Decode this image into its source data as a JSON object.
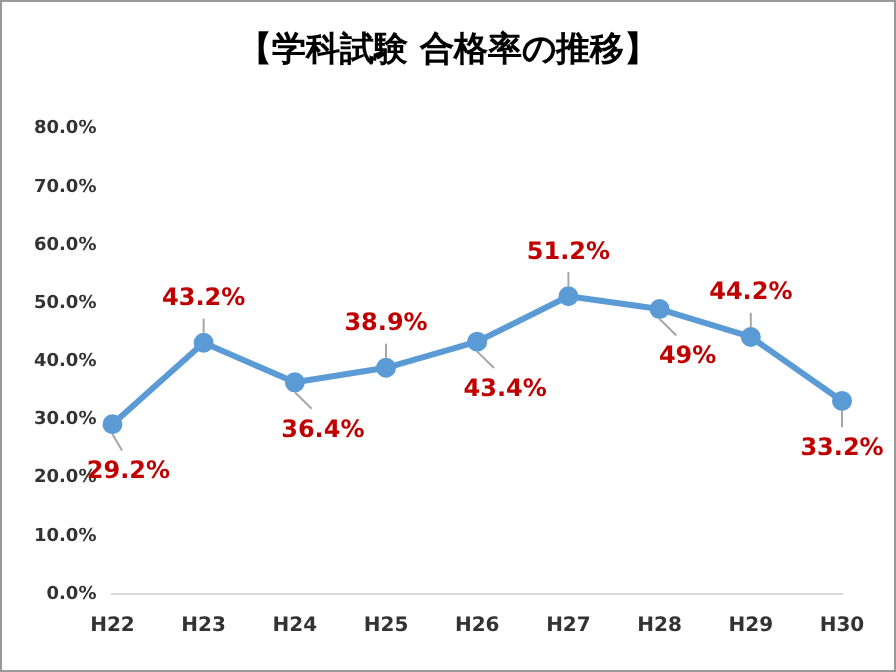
{
  "chart_data": {
    "type": "line",
    "title": "【学科試験 合格率の推移】",
    "categories": [
      "H22",
      "H23",
      "H24",
      "H25",
      "H26",
      "H27",
      "H28",
      "H29",
      "H30"
    ],
    "series": [
      {
        "color": "#5b9bd5",
        "values": [
          29.2,
          43.2,
          36.4,
          38.9,
          43.4,
          51.2,
          49,
          44.2,
          33.2
        ],
        "value_labels": [
          "29.2%",
          "43.2%",
          "36.4%",
          "38.9%",
          "43.4%",
          "51.2%",
          "49%",
          "44.2%",
          "33.2%"
        ]
      }
    ],
    "ylim": [
      0,
      80
    ],
    "yticks": [
      {
        "value": 0,
        "label": "0.0%"
      },
      {
        "value": 10,
        "label": "10.0%"
      },
      {
        "value": 20,
        "label": "20.0%"
      },
      {
        "value": 30,
        "label": "30.0%"
      },
      {
        "value": 40,
        "label": "40.0%"
      },
      {
        "value": 50,
        "label": "50.0%"
      },
      {
        "value": 60,
        "label": "60.0%"
      },
      {
        "value": 70,
        "label": "70.0%"
      },
      {
        "value": 80,
        "label": "80.0%"
      }
    ],
    "grid": false,
    "legend": false,
    "marker": "circle",
    "line_style": "solid"
  }
}
